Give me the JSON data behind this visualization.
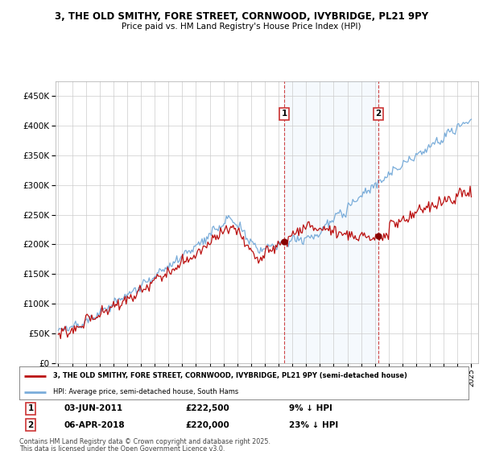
{
  "title": "3, THE OLD SMITHY, FORE STREET, CORNWOOD, IVYBRIDGE, PL21 9PY",
  "subtitle": "Price paid vs. HM Land Registry's House Price Index (HPI)",
  "property_label": "3, THE OLD SMITHY, FORE STREET, CORNWOOD, IVYBRIDGE, PL21 9PY (semi-detached house)",
  "hpi_label": "HPI: Average price, semi-detached house, South Hams",
  "transactions": [
    {
      "date": "03-JUN-2011",
      "price": 222500,
      "vs_hpi": "9% ↓ HPI",
      "label": "1",
      "year": 2011.42
    },
    {
      "date": "06-APR-2018",
      "price": 220000,
      "vs_hpi": "23% ↓ HPI",
      "label": "2",
      "year": 2018.26
    }
  ],
  "footnote1": "Contains HM Land Registry data © Crown copyright and database right 2025.",
  "footnote2": "This data is licensed under the Open Government Licence v3.0.",
  "hpi_color": "#7aadda",
  "property_color": "#bb1111",
  "vline_color": "#cc3333",
  "bg_shading_color": "#ddeeff",
  "ylim": [
    0,
    475000
  ],
  "xlim": [
    1994.8,
    2025.5
  ],
  "yticks": [
    0,
    50000,
    100000,
    150000,
    200000,
    250000,
    300000,
    350000,
    400000,
    450000
  ],
  "xticks": [
    1995,
    1996,
    1997,
    1998,
    1999,
    2000,
    2001,
    2002,
    2003,
    2004,
    2005,
    2006,
    2007,
    2008,
    2009,
    2010,
    2011,
    2012,
    2013,
    2014,
    2015,
    2016,
    2017,
    2018,
    2019,
    2020,
    2021,
    2022,
    2023,
    2024,
    2025
  ]
}
